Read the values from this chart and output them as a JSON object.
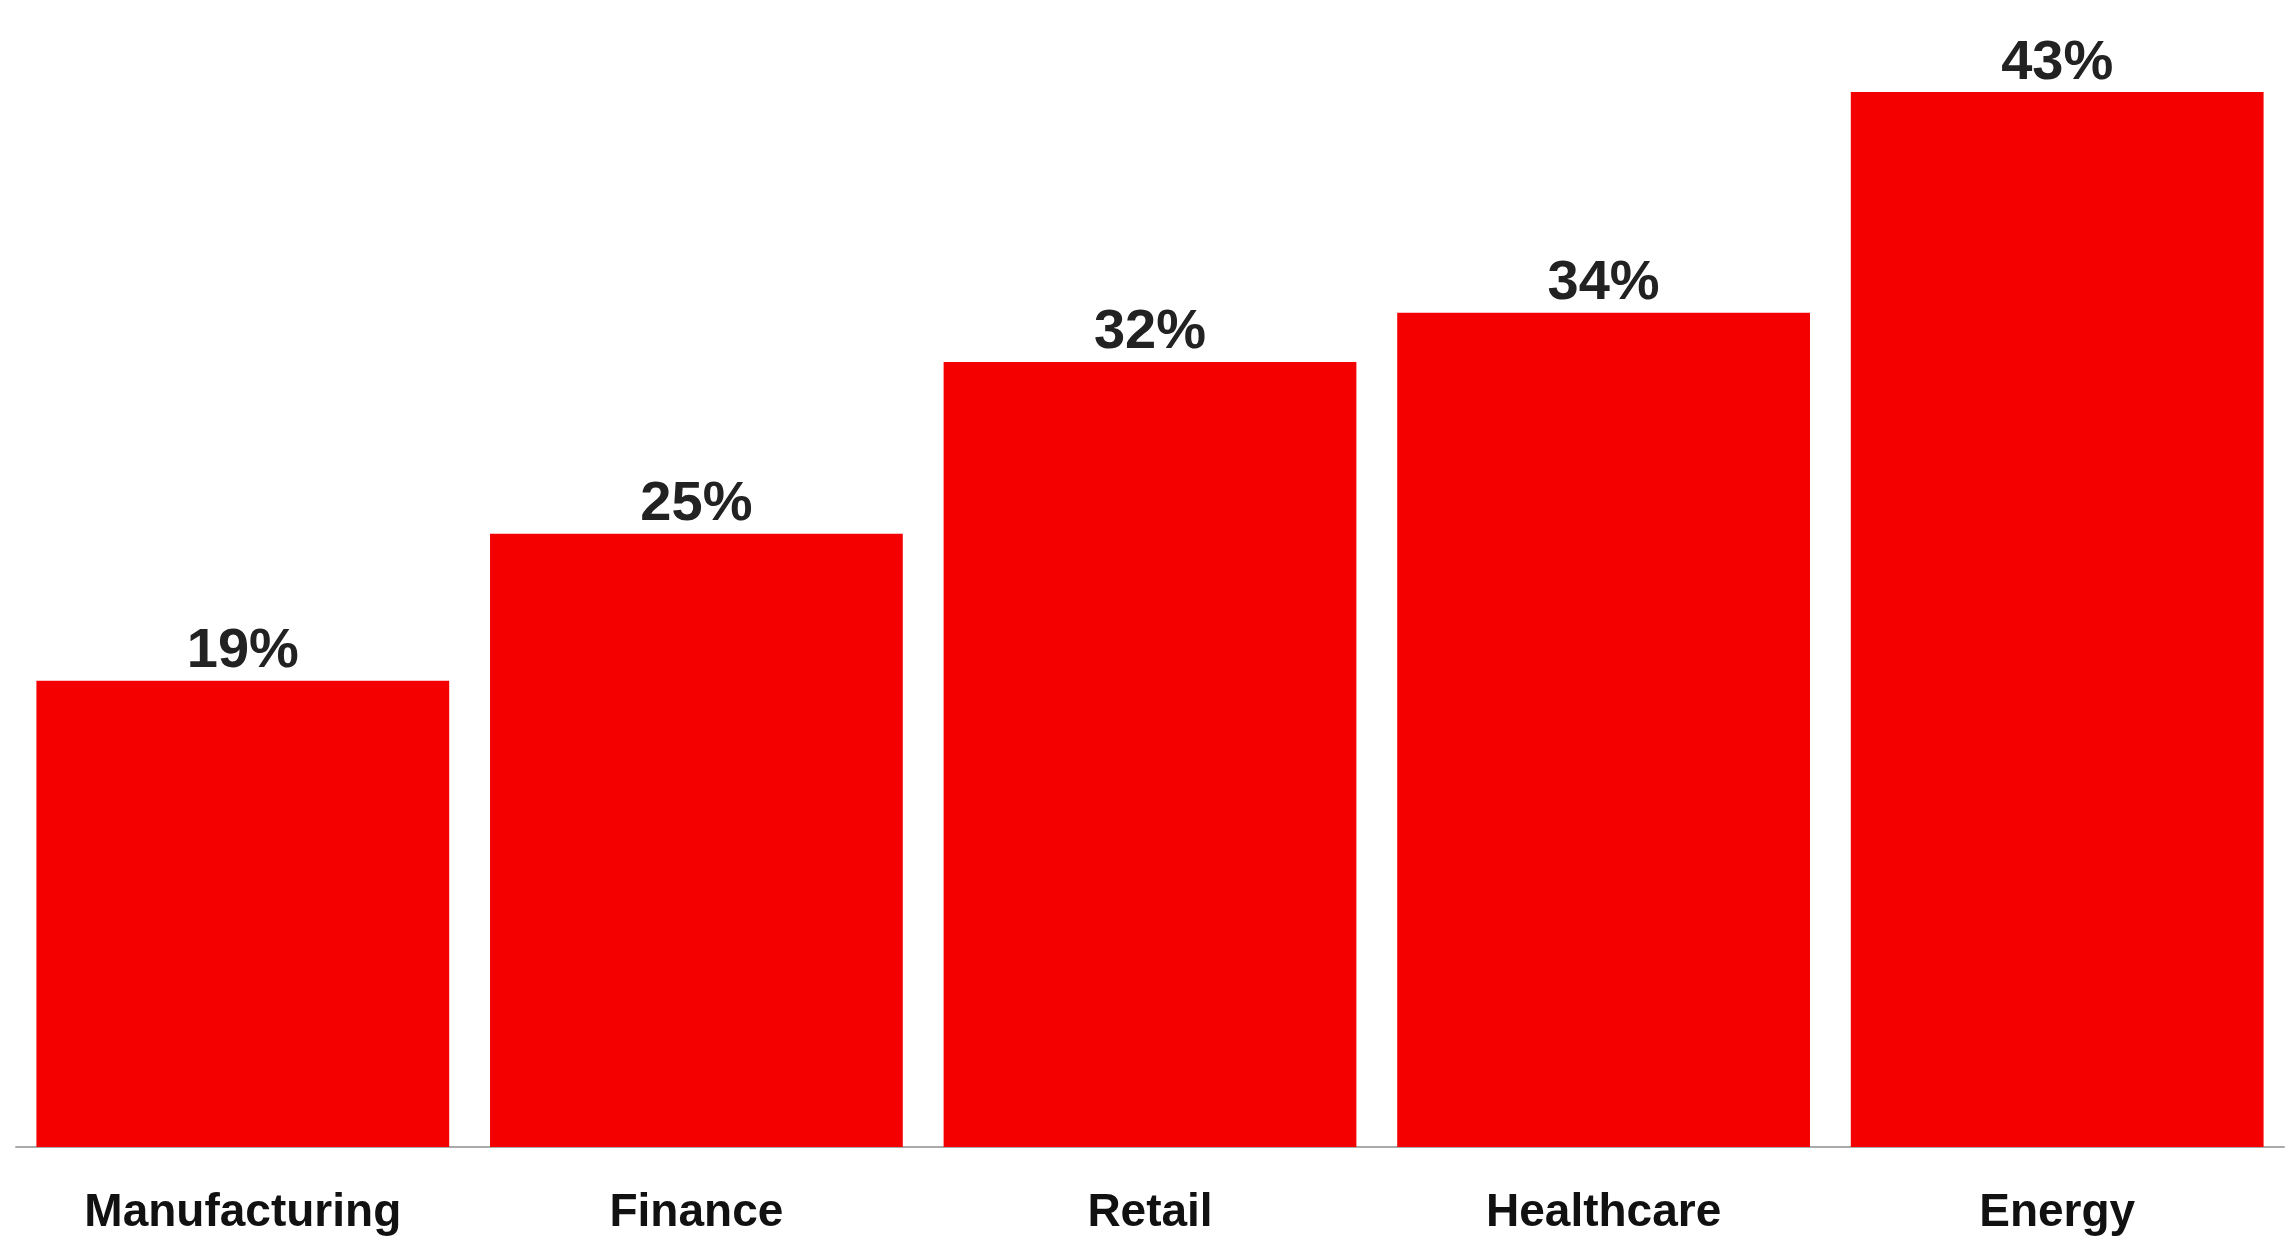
{
  "chart_data": {
    "type": "bar",
    "categories": [
      "Manufacturing",
      "Finance",
      "Retail",
      "Healthcare",
      "Energy"
    ],
    "values": [
      19,
      25,
      32,
      34,
      43
    ],
    "value_labels": [
      "19%",
      "25%",
      "32%",
      "34%",
      "43%"
    ],
    "color": "#f50000"
  }
}
